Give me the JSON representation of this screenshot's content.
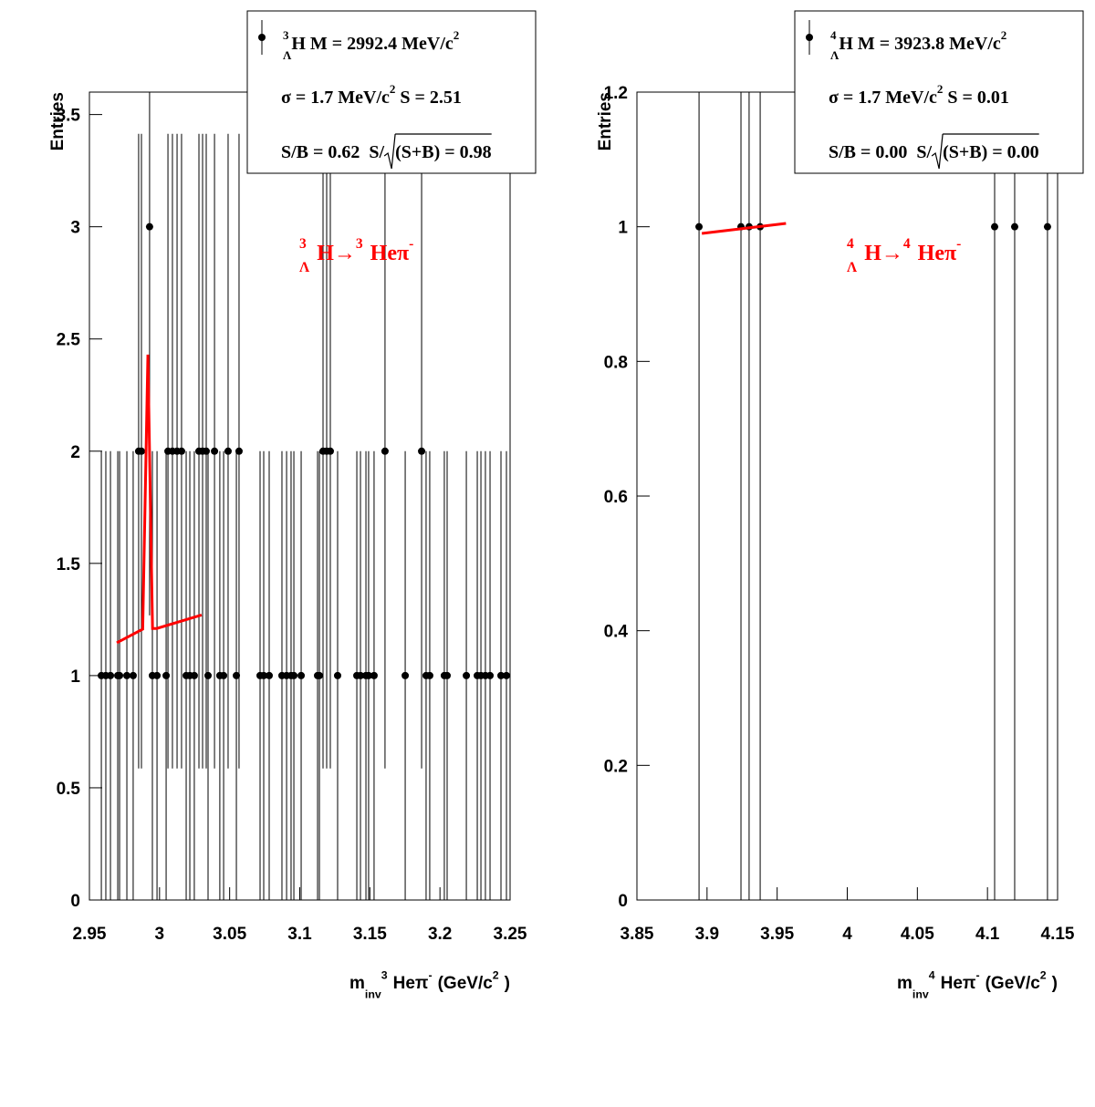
{
  "chart_data": [
    {
      "type": "scatter",
      "legend": [
        [
          "3",
          "Λ",
          "H M = 2992.4 MeV/c",
          "2"
        ],
        [
          "σ = 1.7 MeV/c",
          "2",
          " S = 2.51"
        ],
        [
          "S/B = 0.62  S/",
          "(S+B) = 0.98"
        ]
      ],
      "annotation": [
        "3",
        "Λ",
        "H→",
        "3",
        "Heπ",
        "-"
      ],
      "xlabel": [
        "m",
        "inv",
        "3",
        "Heπ",
        "-",
        "(GeV/c",
        "2",
        ")"
      ],
      "ylabel": "Entries",
      "color": "#000000",
      "fit_color": "#ff0000",
      "x": [
        2.9585,
        2.9617,
        2.965,
        2.9702,
        2.9715,
        2.9767,
        2.9812,
        2.9851,
        2.9871,
        2.9929,
        2.9949,
        2.9982,
        3.0047,
        3.006,
        3.0092,
        3.0125,
        3.0157,
        3.019,
        3.0216,
        3.0248,
        3.0281,
        3.0307,
        3.0333,
        3.0346,
        3.0392,
        3.043,
        3.0457,
        3.0489,
        3.0548,
        3.0567,
        3.0717,
        3.0743,
        3.0782,
        3.0873,
        3.0906,
        3.0938,
        3.0958,
        3.101,
        3.1127,
        3.114,
        3.1166,
        3.1192,
        3.1218,
        3.127,
        3.1407,
        3.1433,
        3.1472,
        3.1491,
        3.153,
        3.1608,
        3.1752,
        3.1869,
        3.1901,
        3.1927,
        3.2031,
        3.2051,
        3.2188,
        3.2266,
        3.2292,
        3.2324,
        3.2357,
        3.2435,
        3.2474
      ],
      "values": [
        1,
        1,
        1,
        1,
        1,
        1,
        1,
        2,
        2,
        3,
        1,
        1,
        1,
        2,
        2,
        2,
        2,
        1,
        1,
        1,
        2,
        2,
        2,
        1,
        2,
        1,
        1,
        2,
        1,
        2,
        1,
        1,
        1,
        1,
        1,
        1,
        1,
        1,
        1,
        1,
        2,
        2,
        2,
        1,
        1,
        1,
        1,
        1,
        1,
        2,
        1,
        2,
        1,
        1,
        1,
        1,
        1,
        1,
        1,
        1,
        1,
        1,
        1
      ],
      "errors": [
        1,
        1,
        1,
        1,
        1,
        1,
        1,
        1.414,
        1.414,
        1.732,
        1,
        1,
        1,
        1.414,
        1.414,
        1.414,
        1.414,
        1,
        1,
        1,
        1.414,
        1.414,
        1.414,
        1,
        1.414,
        1,
        1,
        1.414,
        1,
        1.414,
        1,
        1,
        1,
        1,
        1,
        1,
        1,
        1,
        1,
        1,
        1.414,
        1.414,
        1.414,
        1,
        1,
        1,
        1,
        1,
        1,
        1.414,
        1,
        1.414,
        1,
        1,
        1,
        1,
        1,
        1,
        1,
        1,
        1,
        1,
        1
      ],
      "fit": {
        "x": [
          2.9695,
          2.988,
          2.9917,
          2.995,
          2.998,
          3.03
        ],
        "y": [
          1.146,
          1.207,
          2.43,
          1.21,
          1.21,
          1.27
        ]
      },
      "xlim": [
        2.95,
        3.25
      ],
      "xticks": [
        2.95,
        3,
        3.05,
        3.1,
        3.15,
        3.2,
        3.25
      ],
      "ylim": [
        0,
        3.6
      ],
      "yticks": [
        0,
        0.5,
        1,
        1.5,
        2,
        2.5,
        3,
        3.5
      ]
    },
    {
      "type": "scatter",
      "legend": [
        [
          "4",
          "Λ",
          "H M = 3923.8 MeV/c",
          "2"
        ],
        [
          "σ = 1.7 MeV/c",
          "2",
          " S = 0.01"
        ],
        [
          "S/B = 0.00  S/",
          "(S+B) = 0.00"
        ]
      ],
      "annotation": [
        "4",
        "Λ",
        "H→",
        "4",
        "Heπ",
        "-"
      ],
      "xlabel": [
        "m",
        "inv",
        "4",
        "Heπ",
        "-",
        "(GeV/c",
        "2",
        ")"
      ],
      "ylabel": "Entries",
      "color": "#000000",
      "fit_color": "#ff0000",
      "x": [
        3.8943,
        3.9242,
        3.93,
        3.9379,
        4.1051,
        4.1194,
        4.1428
      ],
      "values": [
        1,
        1,
        1,
        1,
        1,
        1,
        1
      ],
      "errors": [
        1,
        1,
        1,
        1,
        1,
        1,
        1
      ],
      "fit": {
        "x": [
          3.8963,
          3.9563
        ],
        "y": [
          0.99,
          1.005
        ]
      },
      "xlim": [
        3.85,
        4.15
      ],
      "xticks": [
        3.85,
        3.9,
        3.95,
        4,
        4.05,
        4.1,
        4.15
      ],
      "ylim": [
        0,
        1.2
      ],
      "yticks": [
        0,
        0.2,
        0.4,
        0.6,
        0.8,
        1,
        1.2
      ]
    }
  ]
}
